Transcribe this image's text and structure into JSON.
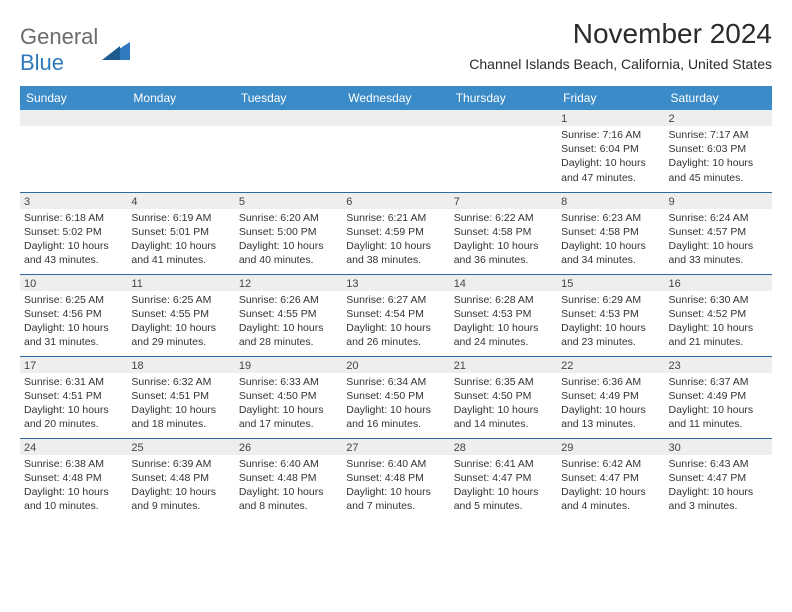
{
  "logo": {
    "word1": "General",
    "word2": "Blue"
  },
  "title": "November 2024",
  "subtitle": "Channel Islands Beach, California, United States",
  "colors": {
    "header_bg": "#3b8bc9",
    "header_text": "#ffffff",
    "row_divider": "#2f6a9e",
    "daynum_bg": "#eeeeee",
    "text": "#2b2b2b",
    "logo_gray": "#6b6b6b",
    "logo_blue": "#2f7abf"
  },
  "day_headers": [
    "Sunday",
    "Monday",
    "Tuesday",
    "Wednesday",
    "Thursday",
    "Friday",
    "Saturday"
  ],
  "weeks": [
    [
      {
        "n": "",
        "sr": "",
        "ss": "",
        "dl": ""
      },
      {
        "n": "",
        "sr": "",
        "ss": "",
        "dl": ""
      },
      {
        "n": "",
        "sr": "",
        "ss": "",
        "dl": ""
      },
      {
        "n": "",
        "sr": "",
        "ss": "",
        "dl": ""
      },
      {
        "n": "",
        "sr": "",
        "ss": "",
        "dl": ""
      },
      {
        "n": "1",
        "sr": "Sunrise: 7:16 AM",
        "ss": "Sunset: 6:04 PM",
        "dl": "Daylight: 10 hours and 47 minutes."
      },
      {
        "n": "2",
        "sr": "Sunrise: 7:17 AM",
        "ss": "Sunset: 6:03 PM",
        "dl": "Daylight: 10 hours and 45 minutes."
      }
    ],
    [
      {
        "n": "3",
        "sr": "Sunrise: 6:18 AM",
        "ss": "Sunset: 5:02 PM",
        "dl": "Daylight: 10 hours and 43 minutes."
      },
      {
        "n": "4",
        "sr": "Sunrise: 6:19 AM",
        "ss": "Sunset: 5:01 PM",
        "dl": "Daylight: 10 hours and 41 minutes."
      },
      {
        "n": "5",
        "sr": "Sunrise: 6:20 AM",
        "ss": "Sunset: 5:00 PM",
        "dl": "Daylight: 10 hours and 40 minutes."
      },
      {
        "n": "6",
        "sr": "Sunrise: 6:21 AM",
        "ss": "Sunset: 4:59 PM",
        "dl": "Daylight: 10 hours and 38 minutes."
      },
      {
        "n": "7",
        "sr": "Sunrise: 6:22 AM",
        "ss": "Sunset: 4:58 PM",
        "dl": "Daylight: 10 hours and 36 minutes."
      },
      {
        "n": "8",
        "sr": "Sunrise: 6:23 AM",
        "ss": "Sunset: 4:58 PM",
        "dl": "Daylight: 10 hours and 34 minutes."
      },
      {
        "n": "9",
        "sr": "Sunrise: 6:24 AM",
        "ss": "Sunset: 4:57 PM",
        "dl": "Daylight: 10 hours and 33 minutes."
      }
    ],
    [
      {
        "n": "10",
        "sr": "Sunrise: 6:25 AM",
        "ss": "Sunset: 4:56 PM",
        "dl": "Daylight: 10 hours and 31 minutes."
      },
      {
        "n": "11",
        "sr": "Sunrise: 6:25 AM",
        "ss": "Sunset: 4:55 PM",
        "dl": "Daylight: 10 hours and 29 minutes."
      },
      {
        "n": "12",
        "sr": "Sunrise: 6:26 AM",
        "ss": "Sunset: 4:55 PM",
        "dl": "Daylight: 10 hours and 28 minutes."
      },
      {
        "n": "13",
        "sr": "Sunrise: 6:27 AM",
        "ss": "Sunset: 4:54 PM",
        "dl": "Daylight: 10 hours and 26 minutes."
      },
      {
        "n": "14",
        "sr": "Sunrise: 6:28 AM",
        "ss": "Sunset: 4:53 PM",
        "dl": "Daylight: 10 hours and 24 minutes."
      },
      {
        "n": "15",
        "sr": "Sunrise: 6:29 AM",
        "ss": "Sunset: 4:53 PM",
        "dl": "Daylight: 10 hours and 23 minutes."
      },
      {
        "n": "16",
        "sr": "Sunrise: 6:30 AM",
        "ss": "Sunset: 4:52 PM",
        "dl": "Daylight: 10 hours and 21 minutes."
      }
    ],
    [
      {
        "n": "17",
        "sr": "Sunrise: 6:31 AM",
        "ss": "Sunset: 4:51 PM",
        "dl": "Daylight: 10 hours and 20 minutes."
      },
      {
        "n": "18",
        "sr": "Sunrise: 6:32 AM",
        "ss": "Sunset: 4:51 PM",
        "dl": "Daylight: 10 hours and 18 minutes."
      },
      {
        "n": "19",
        "sr": "Sunrise: 6:33 AM",
        "ss": "Sunset: 4:50 PM",
        "dl": "Daylight: 10 hours and 17 minutes."
      },
      {
        "n": "20",
        "sr": "Sunrise: 6:34 AM",
        "ss": "Sunset: 4:50 PM",
        "dl": "Daylight: 10 hours and 16 minutes."
      },
      {
        "n": "21",
        "sr": "Sunrise: 6:35 AM",
        "ss": "Sunset: 4:50 PM",
        "dl": "Daylight: 10 hours and 14 minutes."
      },
      {
        "n": "22",
        "sr": "Sunrise: 6:36 AM",
        "ss": "Sunset: 4:49 PM",
        "dl": "Daylight: 10 hours and 13 minutes."
      },
      {
        "n": "23",
        "sr": "Sunrise: 6:37 AM",
        "ss": "Sunset: 4:49 PM",
        "dl": "Daylight: 10 hours and 11 minutes."
      }
    ],
    [
      {
        "n": "24",
        "sr": "Sunrise: 6:38 AM",
        "ss": "Sunset: 4:48 PM",
        "dl": "Daylight: 10 hours and 10 minutes."
      },
      {
        "n": "25",
        "sr": "Sunrise: 6:39 AM",
        "ss": "Sunset: 4:48 PM",
        "dl": "Daylight: 10 hours and 9 minutes."
      },
      {
        "n": "26",
        "sr": "Sunrise: 6:40 AM",
        "ss": "Sunset: 4:48 PM",
        "dl": "Daylight: 10 hours and 8 minutes."
      },
      {
        "n": "27",
        "sr": "Sunrise: 6:40 AM",
        "ss": "Sunset: 4:48 PM",
        "dl": "Daylight: 10 hours and 7 minutes."
      },
      {
        "n": "28",
        "sr": "Sunrise: 6:41 AM",
        "ss": "Sunset: 4:47 PM",
        "dl": "Daylight: 10 hours and 5 minutes."
      },
      {
        "n": "29",
        "sr": "Sunrise: 6:42 AM",
        "ss": "Sunset: 4:47 PM",
        "dl": "Daylight: 10 hours and 4 minutes."
      },
      {
        "n": "30",
        "sr": "Sunrise: 6:43 AM",
        "ss": "Sunset: 4:47 PM",
        "dl": "Daylight: 10 hours and 3 minutes."
      }
    ]
  ]
}
